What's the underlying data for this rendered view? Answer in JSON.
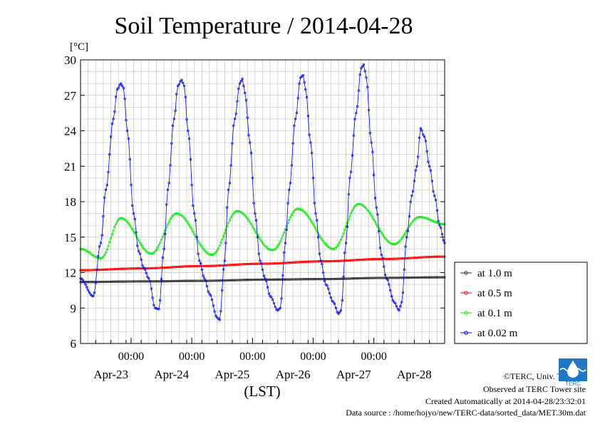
{
  "chart_data": {
    "type": "line",
    "title": "Soil Temperature / 2014-04-28",
    "ylabel": "[°C]",
    "xlabel": "(LST)",
    "ylim": [
      6,
      30
    ],
    "xlim": [
      0,
      144
    ],
    "y_ticks": [
      6,
      9,
      12,
      15,
      18,
      21,
      24,
      27,
      30
    ],
    "x_ticks": [
      {
        "x": 20,
        "label": "00:00"
      },
      {
        "x": 44,
        "label": "00:00"
      },
      {
        "x": 68,
        "label": "00:00"
      },
      {
        "x": 92,
        "label": "00:00"
      },
      {
        "x": 116,
        "label": "00:00"
      }
    ],
    "date_labels": [
      {
        "x": 12,
        "label": "Apr-23"
      },
      {
        "x": 36,
        "label": "Apr-24"
      },
      {
        "x": 60,
        "label": "Apr-25"
      },
      {
        "x": 84,
        "label": "Apr-26"
      },
      {
        "x": 108,
        "label": "Apr-27"
      },
      {
        "x": 132,
        "label": "Apr-28"
      }
    ],
    "grid": true,
    "legend_position": "right",
    "series": [
      {
        "name": "at 1.0 m",
        "color": "#333333",
        "points": [
          [
            0,
            11.2
          ],
          [
            24,
            11.25
          ],
          [
            48,
            11.3
          ],
          [
            72,
            11.4
          ],
          [
            96,
            11.45
          ],
          [
            120,
            11.55
          ],
          [
            144,
            11.6
          ]
        ]
      },
      {
        "name": "at 0.5 m",
        "color": "#ff0000",
        "points": [
          [
            0,
            12.2
          ],
          [
            24,
            12.35
          ],
          [
            48,
            12.55
          ],
          [
            72,
            12.75
          ],
          [
            96,
            12.95
          ],
          [
            120,
            13.15
          ],
          [
            144,
            13.35
          ]
        ]
      },
      {
        "name": "at 0.1 m",
        "color": "#00ee00",
        "points": [
          [
            0,
            14.0
          ],
          [
            8,
            13.2
          ],
          [
            16,
            16.6
          ],
          [
            28,
            13.6
          ],
          [
            38,
            17.0
          ],
          [
            52,
            13.5
          ],
          [
            62,
            17.2
          ],
          [
            76,
            13.9
          ],
          [
            86,
            17.4
          ],
          [
            100,
            14.0
          ],
          [
            110,
            17.8
          ],
          [
            124,
            14.4
          ],
          [
            134,
            16.7
          ],
          [
            144,
            16.1
          ]
        ]
      },
      {
        "name": "at 0.02 m",
        "color": "#0000ff",
        "points": [
          [
            0,
            11.5
          ],
          [
            5,
            10.0
          ],
          [
            8,
            14.5
          ],
          [
            10,
            19.0
          ],
          [
            13,
            25.0
          ],
          [
            14.5,
            27.5
          ],
          [
            16,
            28.0
          ],
          [
            17,
            27.6
          ],
          [
            18.5,
            24.0
          ],
          [
            21,
            17.0
          ],
          [
            23,
            13.8
          ],
          [
            25,
            12.4
          ],
          [
            27,
            11.5
          ],
          [
            29.5,
            9.0
          ],
          [
            31,
            8.9
          ],
          [
            33,
            14.0
          ],
          [
            34.5,
            19.0
          ],
          [
            37,
            25.0
          ],
          [
            38.5,
            27.8
          ],
          [
            40,
            28.3
          ],
          [
            41,
            27.8
          ],
          [
            42.5,
            24.0
          ],
          [
            45,
            17.0
          ],
          [
            47,
            13.0
          ],
          [
            49,
            11.5
          ],
          [
            51,
            10.2
          ],
          [
            54,
            8.2
          ],
          [
            55,
            8.0
          ],
          [
            57,
            13.0
          ],
          [
            58.5,
            19.0
          ],
          [
            61,
            25.0
          ],
          [
            63,
            28.0
          ],
          [
            64,
            28.4
          ],
          [
            65,
            27.2
          ],
          [
            67,
            23.0
          ],
          [
            69,
            17.0
          ],
          [
            71,
            13.0
          ],
          [
            73,
            11.5
          ],
          [
            75,
            10.0
          ],
          [
            78,
            8.8
          ],
          [
            79,
            9.0
          ],
          [
            81,
            14.5
          ],
          [
            82.5,
            19.0
          ],
          [
            85,
            25.0
          ],
          [
            87,
            28.5
          ],
          [
            88,
            28.7
          ],
          [
            89,
            27.5
          ],
          [
            91,
            23.0
          ],
          [
            93,
            17.0
          ],
          [
            95,
            13.0
          ],
          [
            97,
            11.0
          ],
          [
            100,
            9.5
          ],
          [
            102,
            8.5
          ],
          [
            103,
            8.8
          ],
          [
            105,
            14.5
          ],
          [
            106.5,
            20.0
          ],
          [
            109,
            25.5
          ],
          [
            111,
            29.3
          ],
          [
            112,
            29.6
          ],
          [
            113,
            28.5
          ],
          [
            115,
            23.0
          ],
          [
            117,
            17.5
          ],
          [
            119,
            13.5
          ],
          [
            121,
            11.5
          ],
          [
            124,
            9.5
          ],
          [
            126,
            8.8
          ],
          [
            127,
            9.5
          ],
          [
            129,
            15.0
          ],
          [
            131,
            18.5
          ],
          [
            133,
            21.0
          ],
          [
            134.5,
            24.2
          ],
          [
            136,
            23.5
          ],
          [
            138,
            21.0
          ],
          [
            140,
            18.5
          ],
          [
            142,
            16.0
          ],
          [
            144,
            14.5
          ]
        ]
      }
    ]
  },
  "footer": {
    "credit": "©TERC, Univ. Tsukuba",
    "observed": "Observed at TERC Tower site",
    "created": "Created Automatically at 2014-04-28/23:32:01",
    "source": "Data source : /home/hojyo/new/TERC-data/sorted_data/MET.30m.dat",
    "logo_text": "TERC"
  }
}
